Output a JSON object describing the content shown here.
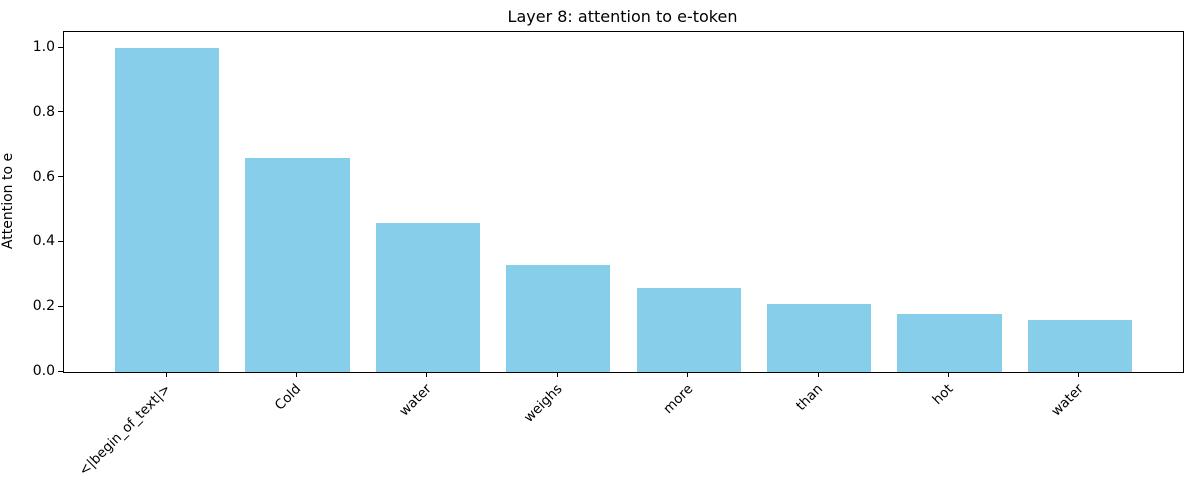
{
  "chart_data": {
    "type": "bar",
    "title": "Layer 8: attention to e-token",
    "xlabel": "",
    "ylabel": "Attention to e",
    "categories": [
      "<|begin_of_text|>",
      "Cold",
      "water",
      "weighs",
      "more",
      "than",
      "hot",
      "water"
    ],
    "values": [
      1.0,
      0.66,
      0.46,
      0.33,
      0.26,
      0.21,
      0.18,
      0.16
    ],
    "bar_color": "#87CEEB",
    "ylim": [
      0,
      1.05
    ],
    "yticks": [
      0.0,
      0.2,
      0.4,
      0.6,
      0.8,
      1.0
    ],
    "ytick_labels": [
      "0.0",
      "0.2",
      "0.4",
      "0.6",
      "0.8",
      "1.0"
    ],
    "x_tick_rotation_deg": 45,
    "grid": false,
    "legend": "none",
    "background_color": "#ffffff",
    "axis_color": "#000000"
  }
}
